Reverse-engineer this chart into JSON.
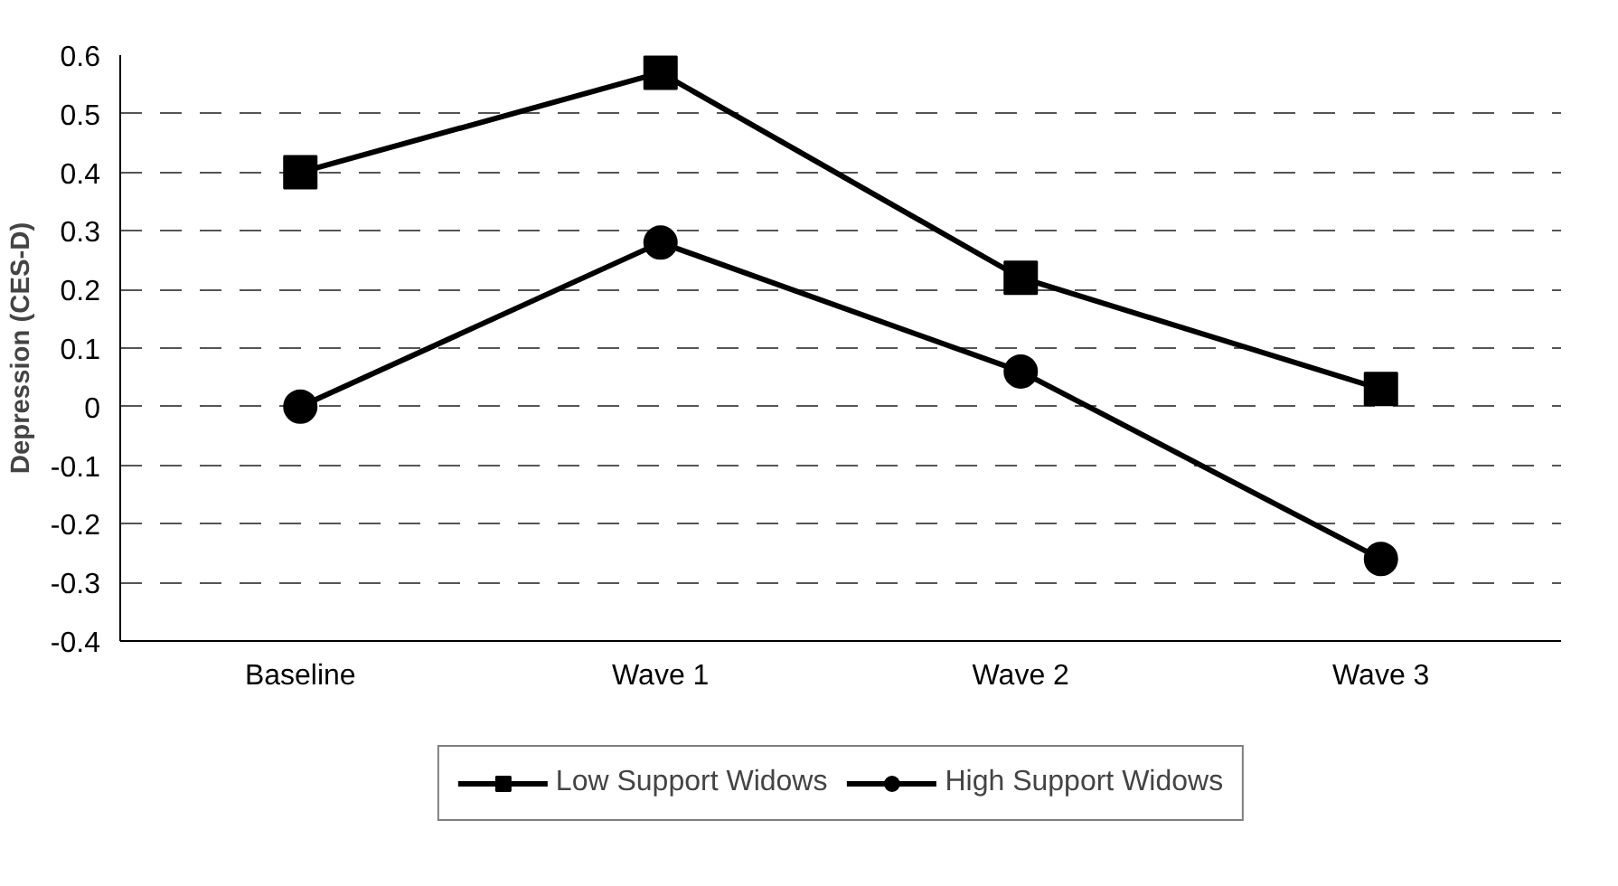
{
  "chart_data": {
    "type": "line",
    "ylabel": "Depression (CES-D)",
    "categories": [
      "Baseline",
      "Wave 1",
      "Wave 2",
      "Wave 3"
    ],
    "series": [
      {
        "name": "Low Support Widows",
        "color": "#000000",
        "marker": "square",
        "values": [
          0.4,
          0.57,
          0.22,
          0.03
        ]
      },
      {
        "name": "High Support Widows",
        "color": "#000000",
        "marker": "circle",
        "values": [
          0.0,
          0.28,
          0.06,
          -0.26
        ]
      }
    ],
    "ylim": [
      -0.4,
      0.6
    ],
    "yticks": [
      -0.4,
      -0.3,
      -0.2,
      -0.1,
      0,
      0.1,
      0.2,
      0.3,
      0.4,
      0.5,
      0.6
    ],
    "grid": "y",
    "legend": "bottom",
    "line_style": "solid"
  }
}
